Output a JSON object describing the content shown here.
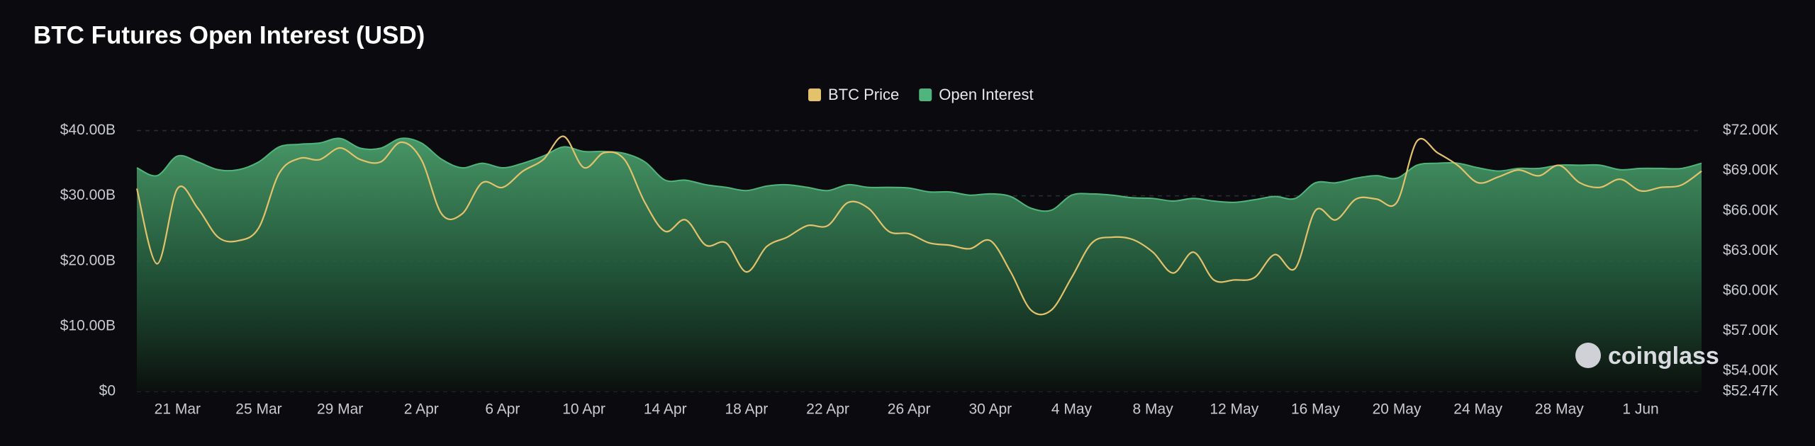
{
  "chart_data": {
    "type": "area_line",
    "title": "BTC Futures Open Interest (USD)",
    "watermark": "coinglass",
    "legend": "top",
    "grid": true,
    "categories": [
      null,
      null,
      "21 Mar",
      null,
      null,
      null,
      "25 Mar",
      null,
      null,
      null,
      "29 Mar",
      null,
      null,
      null,
      "2 Apr",
      null,
      null,
      null,
      "6 Apr",
      null,
      null,
      null,
      "10 Apr",
      null,
      null,
      null,
      "14 Apr",
      null,
      null,
      null,
      "18 Apr",
      null,
      null,
      null,
      "22 Apr",
      null,
      null,
      null,
      "26 Apr",
      null,
      null,
      null,
      "30 Apr",
      null,
      null,
      null,
      "4 May",
      null,
      null,
      null,
      "8 May",
      null,
      null,
      null,
      "12 May",
      null,
      null,
      null,
      "16 May",
      null,
      null,
      null,
      "20 May",
      null,
      null,
      null,
      "24 May",
      null,
      null,
      null,
      "28 May",
      null,
      null,
      null,
      "1 Jun",
      null,
      null,
      null
    ],
    "series": [
      {
        "name": "BTC Price",
        "color": "#e3c26b",
        "axis": "y2",
        "values": [
          67660,
          62030,
          67660,
          66190,
          64020,
          63760,
          64720,
          68790,
          69920,
          69830,
          70700,
          69830,
          69660,
          71130,
          69830,
          65760,
          65760,
          68100,
          67750,
          68970,
          69830,
          71570,
          69230,
          70350,
          69830,
          66620,
          64460,
          65320,
          63420,
          63590,
          61420,
          63330,
          64020,
          64890,
          64890,
          66620,
          66190,
          64460,
          64280,
          63590,
          63420,
          63160,
          63760,
          61420,
          58560,
          58560,
          61000,
          63590,
          64020,
          63850,
          62900,
          61340,
          62900,
          60820,
          60820,
          61000,
          62720,
          61680,
          66020,
          65320,
          66880,
          66880,
          66620,
          71220,
          70350,
          69400,
          68100,
          68530,
          69050,
          68620,
          69400,
          68100,
          67750,
          68360,
          67490,
          67750,
          67920,
          68970
        ]
      },
      {
        "name": "Open Interest",
        "color": "#4fb57c",
        "axis": "y",
        "values": [
          34.3,
          33.1,
          36.1,
          35.2,
          34.0,
          34.0,
          35.2,
          37.5,
          37.9,
          38.1,
          38.8,
          37.3,
          37.3,
          38.8,
          38.1,
          35.6,
          34.3,
          35.0,
          34.3,
          35.0,
          36.1,
          37.5,
          36.8,
          36.8,
          36.5,
          35.2,
          32.4,
          32.4,
          31.7,
          31.3,
          30.8,
          31.5,
          31.7,
          31.3,
          30.8,
          31.7,
          31.3,
          31.3,
          31.2,
          30.6,
          30.6,
          30.1,
          30.3,
          29.9,
          28.1,
          27.8,
          30.1,
          30.3,
          30.1,
          29.7,
          29.6,
          29.2,
          29.6,
          29.2,
          29.0,
          29.4,
          29.9,
          29.6,
          32.0,
          32.0,
          32.7,
          33.1,
          32.7,
          34.7,
          35.0,
          35.0,
          34.3,
          33.8,
          34.2,
          34.2,
          34.7,
          34.7,
          34.7,
          34.0,
          34.2,
          34.2,
          34.2,
          35.0
        ]
      }
    ],
    "ylim": [
      0,
      40
    ],
    "yticks": [
      {
        "value": 0,
        "label": "$0"
      },
      {
        "value": 10,
        "label": "$10.00B"
      },
      {
        "value": 20,
        "label": "$20.00B"
      },
      {
        "value": 30,
        "label": "$30.00B"
      },
      {
        "value": 40,
        "label": "$40.00B"
      }
    ],
    "y2lim": [
      52470,
      72000
    ],
    "y2ticks": [
      {
        "value": 52470,
        "label": "$52.47K"
      },
      {
        "value": 54000,
        "label": "$54.00K"
      },
      {
        "value": 57000,
        "label": "$57.00K"
      },
      {
        "value": 60000,
        "label": "$60.00K"
      },
      {
        "value": 63000,
        "label": "$63.00K"
      },
      {
        "value": 66000,
        "label": "$66.00K"
      },
      {
        "value": 69000,
        "label": "$69.00K"
      },
      {
        "value": 72000,
        "label": "$72.00K"
      }
    ]
  }
}
